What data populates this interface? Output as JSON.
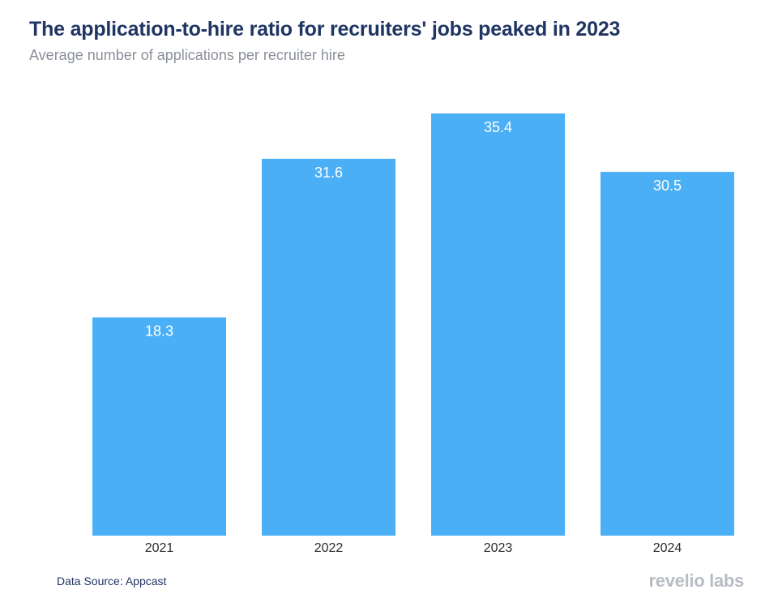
{
  "header": {
    "title": "The application-to-hire ratio for recruiters' jobs peaked in 2023",
    "subtitle": "Average number of applications per recruiter hire"
  },
  "footer": {
    "source": "Data Source: Appcast",
    "logo_text": "revelio labs"
  },
  "colors": {
    "bar": "#4aaff5",
    "bar_label": "#ffffff",
    "tick_label": "#2b2b2b",
    "title": "#1f3563",
    "subtitle": "#8a9099",
    "logo": "#b8bdc4"
  },
  "chart_data": {
    "type": "bar",
    "title": "The application-to-hire ratio for recruiters' jobs peaked in 2023",
    "subtitle": "Average number of applications per recruiter hire",
    "categories": [
      "2021",
      "2022",
      "2023",
      "2024"
    ],
    "values": [
      18.3,
      31.6,
      35.4,
      30.5
    ],
    "data_labels": [
      "18.3",
      "31.6",
      "35.4",
      "30.5"
    ],
    "xlabel": "",
    "ylabel": "",
    "ylim": [
      0,
      35.4
    ],
    "grid": false,
    "legend": "none",
    "data_label_position": "inside-top"
  }
}
